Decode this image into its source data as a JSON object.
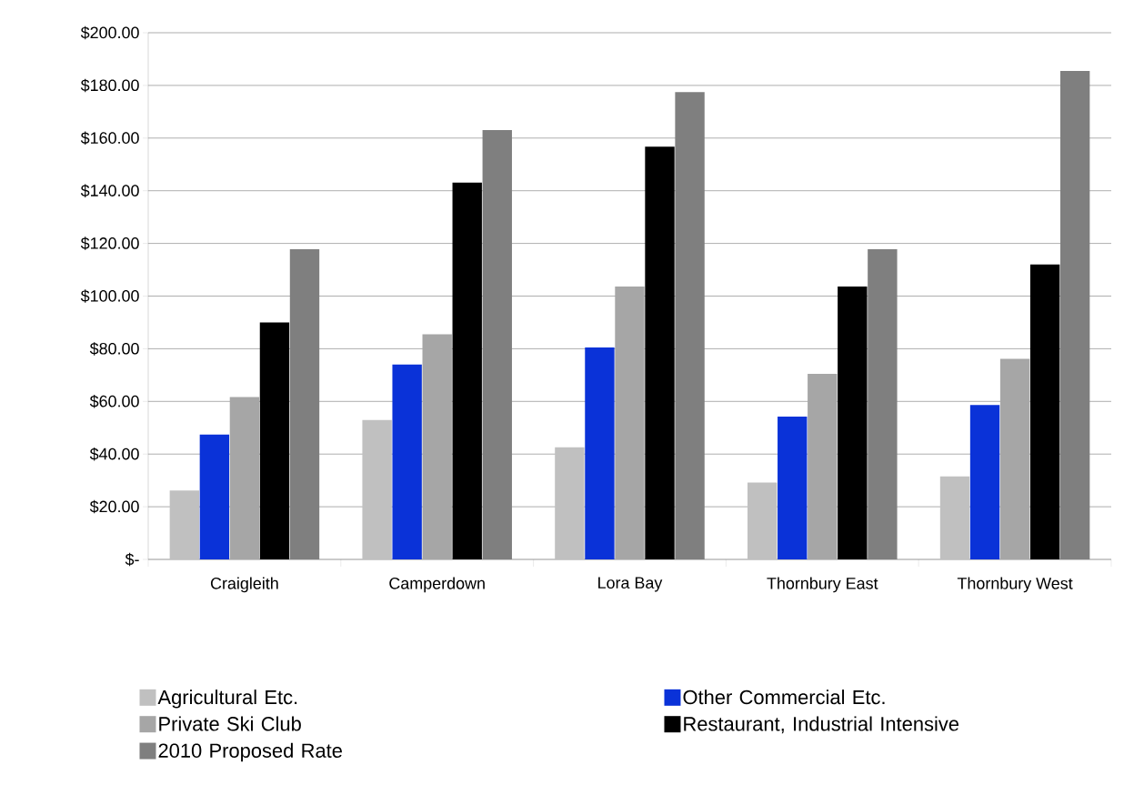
{
  "chart_data": {
    "type": "bar",
    "categories": [
      "Craigleith",
      "Camperdown",
      "Lora Bay",
      "Thornbury East",
      "Thornbury West"
    ],
    "series": [
      {
        "name": "Agricultural Etc.",
        "color": "#c0c0c0",
        "values": [
          26.2,
          52.9,
          42.6,
          29.2,
          31.5
        ]
      },
      {
        "name": "Other Commercial Etc.",
        "color": "#0a32d8",
        "values": [
          47.4,
          74.0,
          80.5,
          54.2,
          58.6
        ]
      },
      {
        "name": "Private Ski Club",
        "color": "#a6a6a6",
        "values": [
          61.7,
          85.5,
          103.6,
          70.5,
          76.2
        ]
      },
      {
        "name": "Restaurant, Industrial Intensive",
        "color": "#000000",
        "values": [
          90.0,
          143.1,
          156.7,
          103.6,
          112.0
        ]
      },
      {
        "name": "2010 Proposed Rate",
        "color": "#7f7f7f",
        "values": [
          117.8,
          163.0,
          177.5,
          117.8,
          185.5
        ]
      }
    ],
    "ylim": [
      0,
      200
    ],
    "yticks": [
      {
        "value": 0,
        "label": "$-"
      },
      {
        "value": 20,
        "label": "$20.00"
      },
      {
        "value": 40,
        "label": "$40.00"
      },
      {
        "value": 60,
        "label": "$60.00"
      },
      {
        "value": 80,
        "label": "$80.00"
      },
      {
        "value": 100,
        "label": "$100.00"
      },
      {
        "value": 120,
        "label": "$120.00"
      },
      {
        "value": 140,
        "label": "$140.00"
      },
      {
        "value": 160,
        "label": "$160.00"
      },
      {
        "value": 180,
        "label": "$180.00"
      },
      {
        "value": 200,
        "label": "$200.00"
      }
    ],
    "grid": "y",
    "legend": "bottom"
  }
}
